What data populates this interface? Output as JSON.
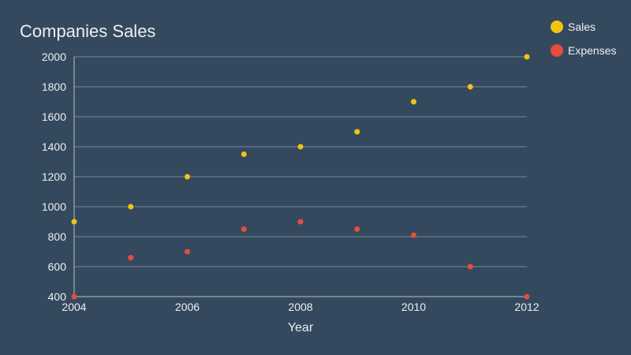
{
  "chart_data": {
    "type": "scatter",
    "title": "Companies Sales",
    "xlabel": "Year",
    "ylabel": "",
    "x": [
      2004,
      2005,
      2006,
      2007,
      2008,
      2009,
      2010,
      2011,
      2012
    ],
    "xticks": [
      2004,
      2006,
      2008,
      2010,
      2012
    ],
    "yticks": [
      400,
      600,
      800,
      1000,
      1200,
      1400,
      1600,
      1800,
      2000
    ],
    "xlim": [
      2004,
      2012
    ],
    "ylim": [
      400,
      2000
    ],
    "grid": true,
    "legend_position": "top-right",
    "series": [
      {
        "name": "Sales",
        "color": "#f1c40f",
        "values": [
          900,
          1000,
          1200,
          1350,
          1400,
          1500,
          1700,
          1800,
          2000
        ]
      },
      {
        "name": "Expenses",
        "color": "#e74c3c",
        "values": [
          400,
          660,
          700,
          850,
          900,
          850,
          810,
          600,
          400
        ]
      }
    ]
  }
}
